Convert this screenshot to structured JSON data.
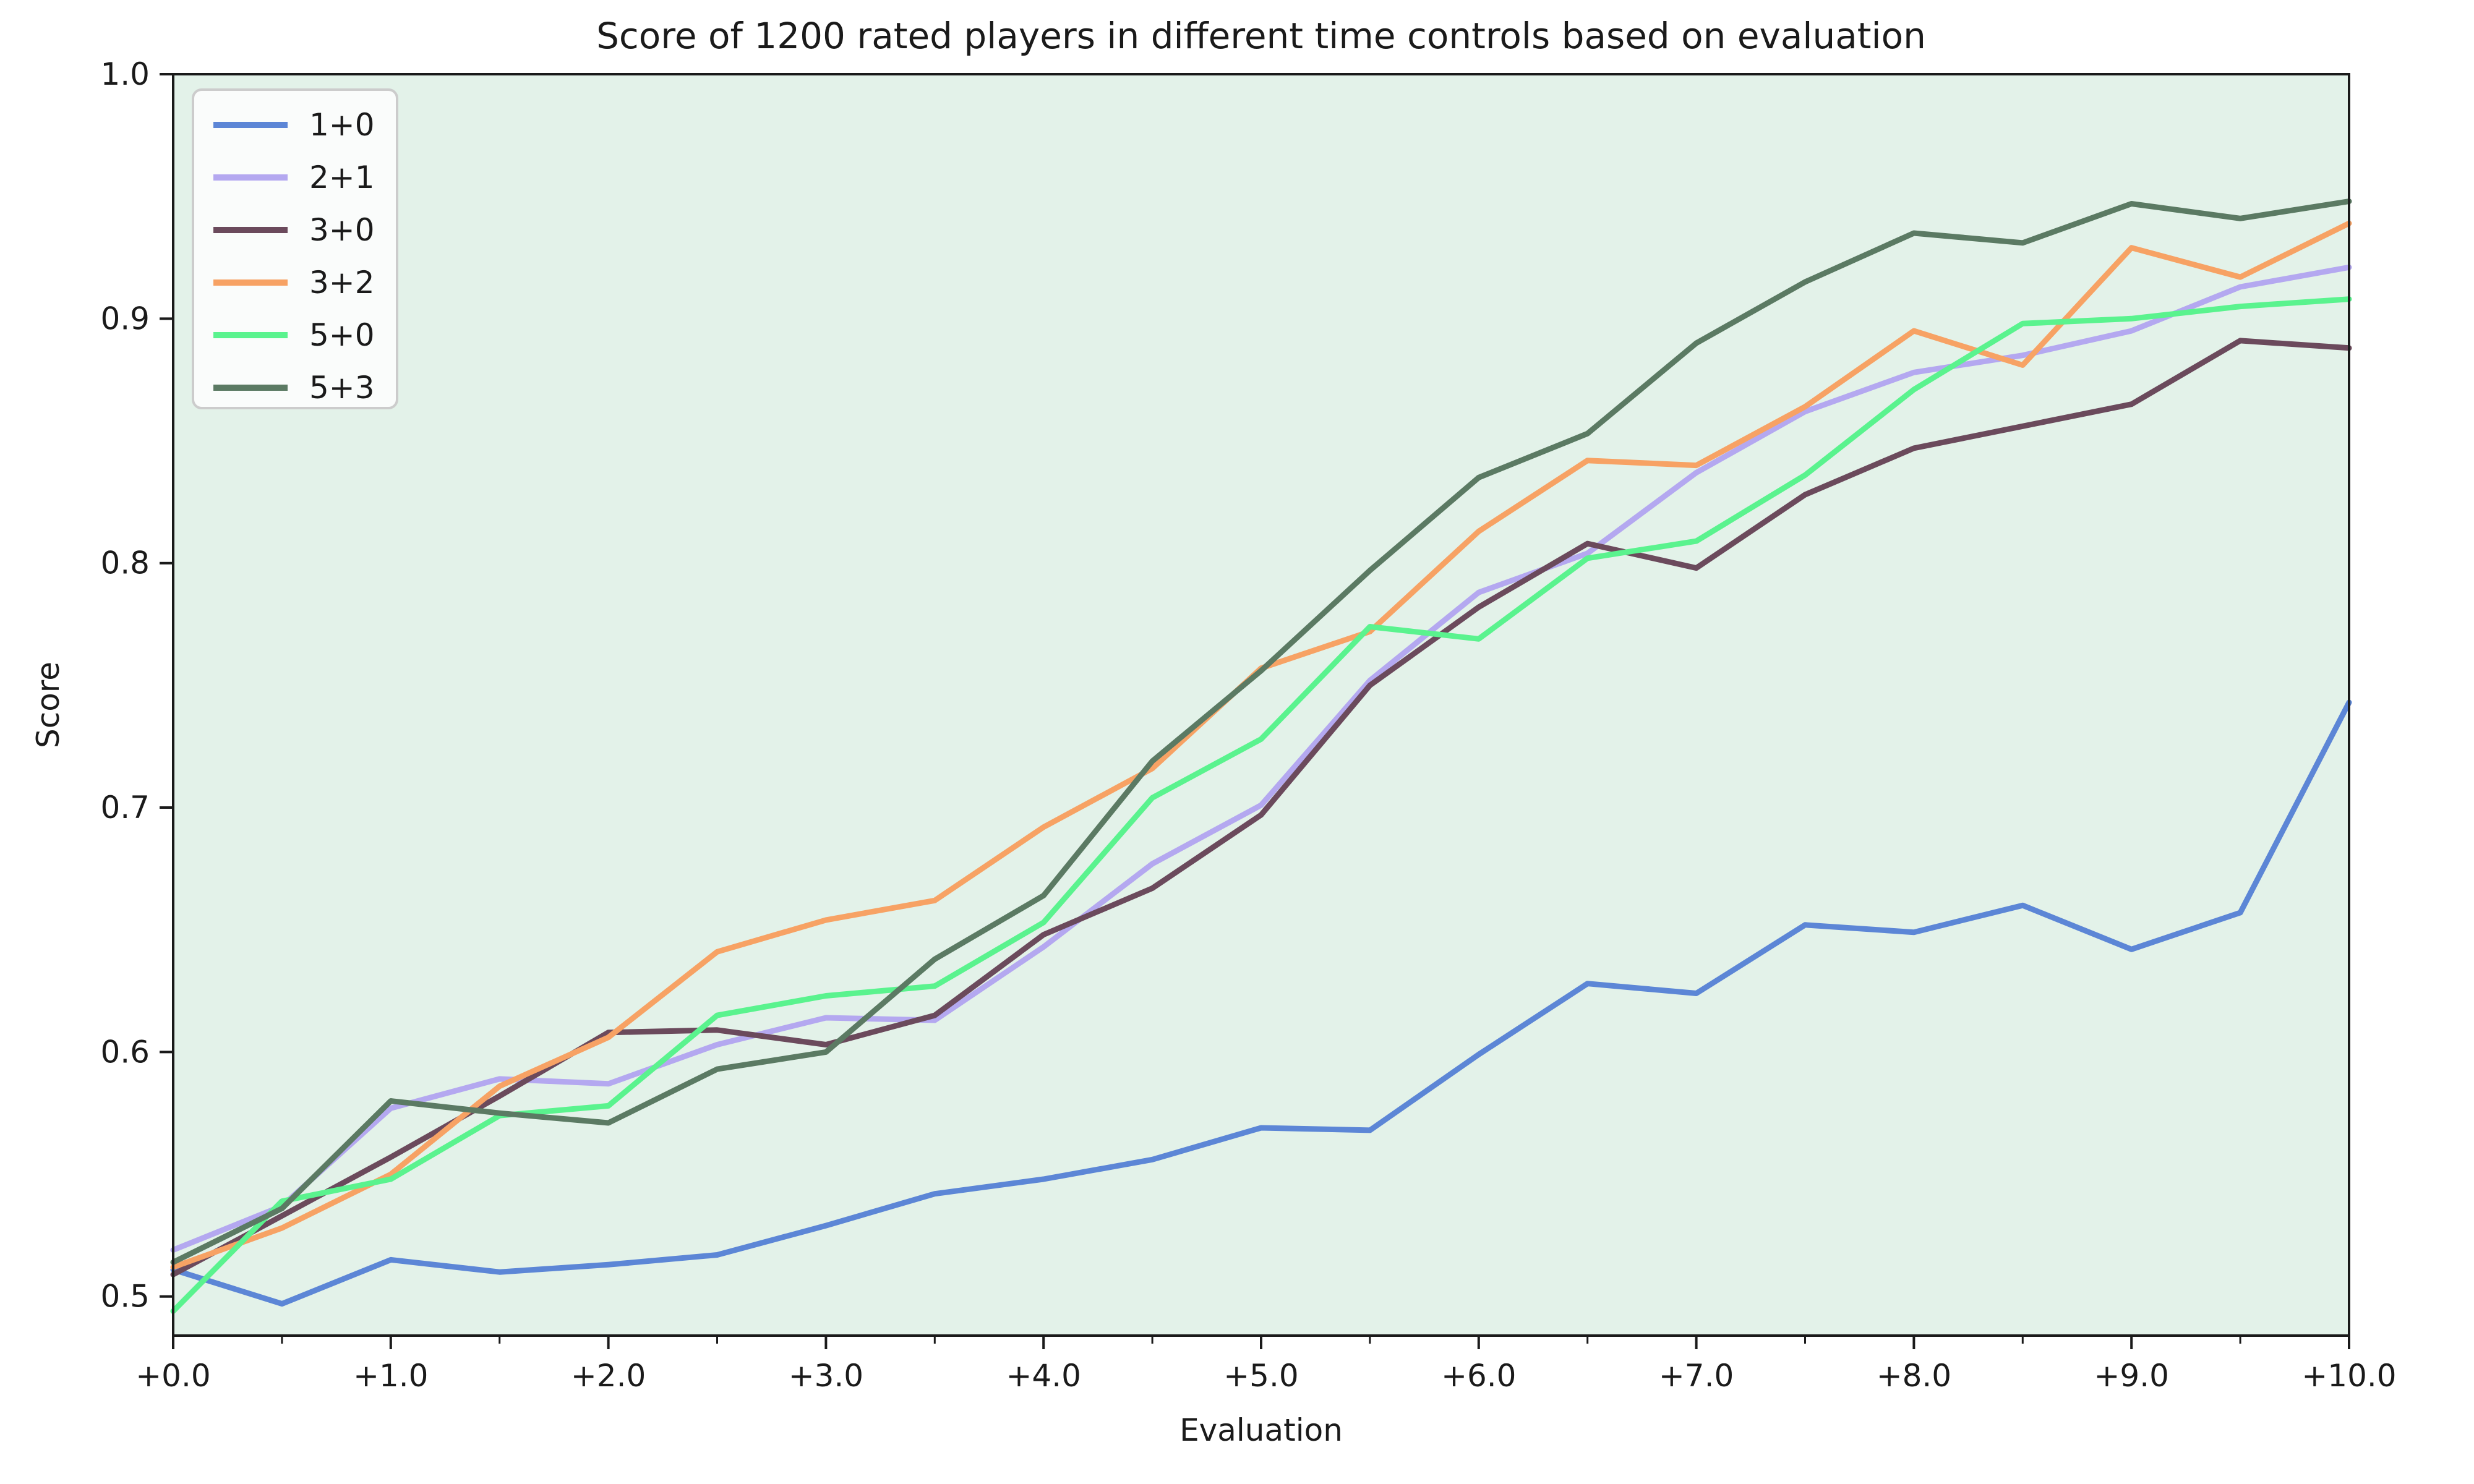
{
  "chart_data": {
    "type": "line",
    "title": "Score of 1200 rated players in different time controls based on evaluation",
    "xlabel": "Evaluation",
    "ylabel": "Score",
    "xlim": [
      0,
      10
    ],
    "ylim": [
      0.484,
      1.0
    ],
    "grid": false,
    "plot_background": "#e3f2e9",
    "figure_background": "#ffffff",
    "legend_position": "upper left",
    "x_major_ticks": [
      0,
      1,
      2,
      3,
      4,
      5,
      6,
      7,
      8,
      9,
      10
    ],
    "x_major_tick_labels": [
      "+0.0",
      "+1.0",
      "+2.0",
      "+3.0",
      "+4.0",
      "+5.0",
      "+6.0",
      "+7.0",
      "+8.0",
      "+9.0",
      "+10.0"
    ],
    "x_minor_ticks": [
      0.5,
      1.5,
      2.5,
      3.5,
      4.5,
      5.5,
      6.5,
      7.5,
      8.5,
      9.5
    ],
    "y_ticks": [
      0.5,
      0.6,
      0.7,
      0.8,
      0.9,
      1.0
    ],
    "y_tick_labels": [
      "0.5",
      "0.6",
      "0.7",
      "0.8",
      "0.9",
      "1.0"
    ],
    "x": [
      0,
      0.5,
      1,
      1.5,
      2,
      2.5,
      3,
      3.5,
      4,
      4.5,
      5,
      5.5,
      6,
      6.5,
      7,
      7.5,
      8,
      8.5,
      9,
      9.5,
      10
    ],
    "series": [
      {
        "name": "1+0",
        "color": "#5c86d6",
        "values": [
          0.511,
          0.497,
          0.515,
          0.51,
          0.513,
          0.517,
          0.529,
          0.542,
          0.548,
          0.556,
          0.569,
          0.568,
          0.599,
          0.628,
          0.624,
          0.652,
          0.649,
          0.66,
          0.642,
          0.657,
          0.743
        ]
      },
      {
        "name": "2+1",
        "color": "#b4a8f0",
        "values": [
          0.519,
          0.537,
          0.577,
          0.589,
          0.587,
          0.603,
          0.614,
          0.613,
          0.643,
          0.677,
          0.701,
          0.752,
          0.788,
          0.804,
          0.837,
          0.862,
          0.878,
          0.885,
          0.895,
          0.913,
          0.921
        ]
      },
      {
        "name": "3+0",
        "color": "#6b4a5c",
        "values": [
          0.509,
          0.533,
          0.557,
          0.582,
          0.608,
          0.609,
          0.603,
          0.615,
          0.648,
          0.667,
          0.697,
          0.75,
          0.782,
          0.808,
          0.798,
          0.828,
          0.847,
          0.856,
          0.865,
          0.891,
          0.888
        ]
      },
      {
        "name": "3+2",
        "color": "#f7a264",
        "values": [
          0.512,
          0.528,
          0.55,
          0.586,
          0.606,
          0.641,
          0.654,
          0.662,
          0.692,
          0.716,
          0.757,
          0.772,
          0.813,
          0.842,
          0.84,
          0.864,
          0.895,
          0.881,
          0.929,
          0.917,
          0.939
        ]
      },
      {
        "name": "5+0",
        "color": "#5af38e",
        "values": [
          0.494,
          0.539,
          0.548,
          0.574,
          0.578,
          0.615,
          0.623,
          0.627,
          0.653,
          0.704,
          0.728,
          0.774,
          0.769,
          0.802,
          0.809,
          0.836,
          0.871,
          0.898,
          0.9,
          0.905,
          0.908
        ]
      },
      {
        "name": "5+3",
        "color": "#5b7a63",
        "values": [
          0.514,
          0.536,
          0.58,
          0.575,
          0.571,
          0.593,
          0.6,
          0.638,
          0.664,
          0.719,
          0.756,
          0.797,
          0.835,
          0.853,
          0.89,
          0.915,
          0.935,
          0.931,
          0.947,
          0.941,
          0.948
        ]
      }
    ]
  }
}
